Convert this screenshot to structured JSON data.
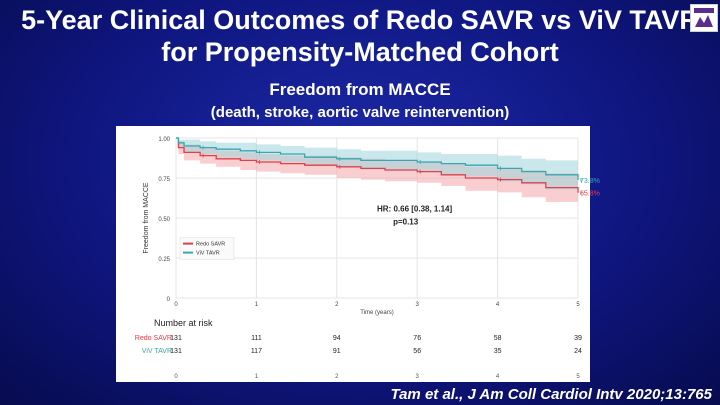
{
  "slide": {
    "title": "5-Year Clinical Outcomes of Redo SAVR vs ViV TAVR for Propensity-Matched Cohort",
    "subtitle": "Freedom from MACCE",
    "subtitle2": "(death, stroke, aortic valve reintervention)",
    "citation": "Tam et al., J Am Coll Cardiol Intv 2020;13:765"
  },
  "logo": {
    "icon": "hospital-logo-icon",
    "color": "#5b2d8e"
  },
  "chart_data": {
    "type": "line",
    "title": "",
    "xlabel": "Time (years)",
    "ylabel": "Freedom from MACCE",
    "xlim": [
      0,
      5
    ],
    "ylim": [
      0,
      1
    ],
    "x_ticks": [
      "0",
      "1",
      "2",
      "3",
      "4",
      "5"
    ],
    "y_ticks": [
      "0",
      "0.25",
      "0.50",
      "0.75",
      "1.00"
    ],
    "grid": true,
    "legend_position": "bottom-left",
    "annotation": {
      "line1": "HR: 0.66 [0.38, 1.14]",
      "line2": "p=0.13"
    },
    "series": [
      {
        "name": "Redo SAVR",
        "color": "#e0404a",
        "band_color": "#f2a5aa",
        "end_label": "65.8%",
        "x": [
          0,
          0.03,
          0.1,
          0.3,
          0.5,
          0.8,
          1.0,
          1.3,
          1.6,
          2.0,
          2.3,
          2.6,
          3.0,
          3.3,
          3.6,
          4.0,
          4.3,
          4.6,
          5.0
        ],
        "y": [
          1.0,
          0.94,
          0.91,
          0.89,
          0.87,
          0.86,
          0.85,
          0.84,
          0.83,
          0.82,
          0.81,
          0.8,
          0.79,
          0.77,
          0.75,
          0.74,
          0.72,
          0.69,
          0.658
        ],
        "lower": [
          1.0,
          0.9,
          0.86,
          0.84,
          0.82,
          0.8,
          0.79,
          0.78,
          0.77,
          0.75,
          0.74,
          0.73,
          0.72,
          0.7,
          0.67,
          0.66,
          0.63,
          0.6,
          0.56
        ],
        "upper": [
          1.0,
          0.98,
          0.96,
          0.94,
          0.92,
          0.91,
          0.9,
          0.89,
          0.89,
          0.88,
          0.87,
          0.86,
          0.85,
          0.84,
          0.82,
          0.81,
          0.8,
          0.78,
          0.76
        ]
      },
      {
        "name": "ViV TAVR",
        "color": "#3aa6b0",
        "band_color": "#9ed6da",
        "end_label": "73.8%",
        "x": [
          0,
          0.03,
          0.1,
          0.3,
          0.5,
          0.8,
          1.0,
          1.3,
          1.6,
          2.0,
          2.3,
          2.6,
          3.0,
          3.3,
          3.6,
          4.0,
          4.3,
          4.6,
          5.0
        ],
        "y": [
          1.0,
          0.97,
          0.95,
          0.94,
          0.93,
          0.92,
          0.91,
          0.9,
          0.88,
          0.87,
          0.86,
          0.86,
          0.85,
          0.84,
          0.83,
          0.81,
          0.79,
          0.77,
          0.738
        ],
        "lower": [
          1.0,
          0.94,
          0.91,
          0.9,
          0.88,
          0.87,
          0.86,
          0.85,
          0.83,
          0.82,
          0.8,
          0.8,
          0.79,
          0.77,
          0.76,
          0.73,
          0.71,
          0.68,
          0.64
        ],
        "upper": [
          1.0,
          0.99,
          0.99,
          0.98,
          0.97,
          0.97,
          0.96,
          0.95,
          0.94,
          0.93,
          0.92,
          0.92,
          0.91,
          0.9,
          0.9,
          0.89,
          0.87,
          0.86,
          0.84
        ]
      }
    ],
    "risk_table": {
      "title": "Number at risk",
      "rows": [
        {
          "label": "Redo SAVR",
          "color": "#e0404a",
          "values": [
            "131",
            "111",
            "94",
            "76",
            "58",
            "39"
          ]
        },
        {
          "label": "ViV TAVR",
          "color": "#3aa6b0",
          "values": [
            "131",
            "117",
            "91",
            "56",
            "35",
            "24"
          ]
        }
      ],
      "x_ticks": [
        "0",
        "1",
        "2",
        "3",
        "4",
        "5"
      ]
    }
  }
}
